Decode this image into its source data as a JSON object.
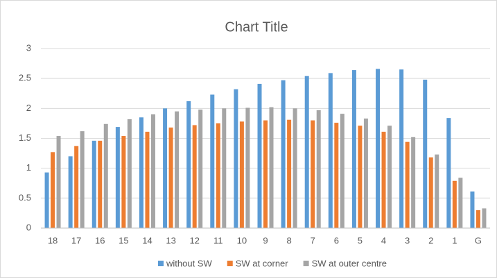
{
  "chart_data": {
    "type": "bar",
    "title": "Chart Title",
    "categories": [
      "18",
      "17",
      "16",
      "15",
      "14",
      "13",
      "12",
      "11",
      "10",
      "9",
      "8",
      "7",
      "6",
      "5",
      "4",
      "3",
      "2",
      "1",
      "G"
    ],
    "series": [
      {
        "name": "without SW",
        "color": "#5b9bd5",
        "values": [
          0.93,
          1.2,
          1.46,
          1.69,
          1.85,
          2.0,
          2.12,
          2.23,
          2.32,
          2.41,
          2.47,
          2.54,
          2.59,
          2.64,
          2.66,
          2.65,
          2.48,
          1.84,
          0.61
        ]
      },
      {
        "name": "SW at corner",
        "color": "#ed7d31",
        "values": [
          1.27,
          1.37,
          1.46,
          1.54,
          1.61,
          1.68,
          1.72,
          1.75,
          1.78,
          1.8,
          1.81,
          1.8,
          1.76,
          1.71,
          1.61,
          1.44,
          1.18,
          0.79,
          0.3
        ]
      },
      {
        "name": "SW at outer centre",
        "color": "#a5a5a5",
        "values": [
          1.54,
          1.62,
          1.74,
          1.82,
          1.9,
          1.95,
          1.98,
          2.0,
          2.01,
          2.02,
          2.0,
          1.97,
          1.91,
          1.83,
          1.71,
          1.52,
          1.23,
          0.84,
          0.33
        ]
      }
    ],
    "ylim": [
      0,
      3
    ],
    "yticks": [
      0,
      0.5,
      1,
      1.5,
      2,
      2.5,
      3
    ],
    "grid": true,
    "legend": "bottom"
  }
}
